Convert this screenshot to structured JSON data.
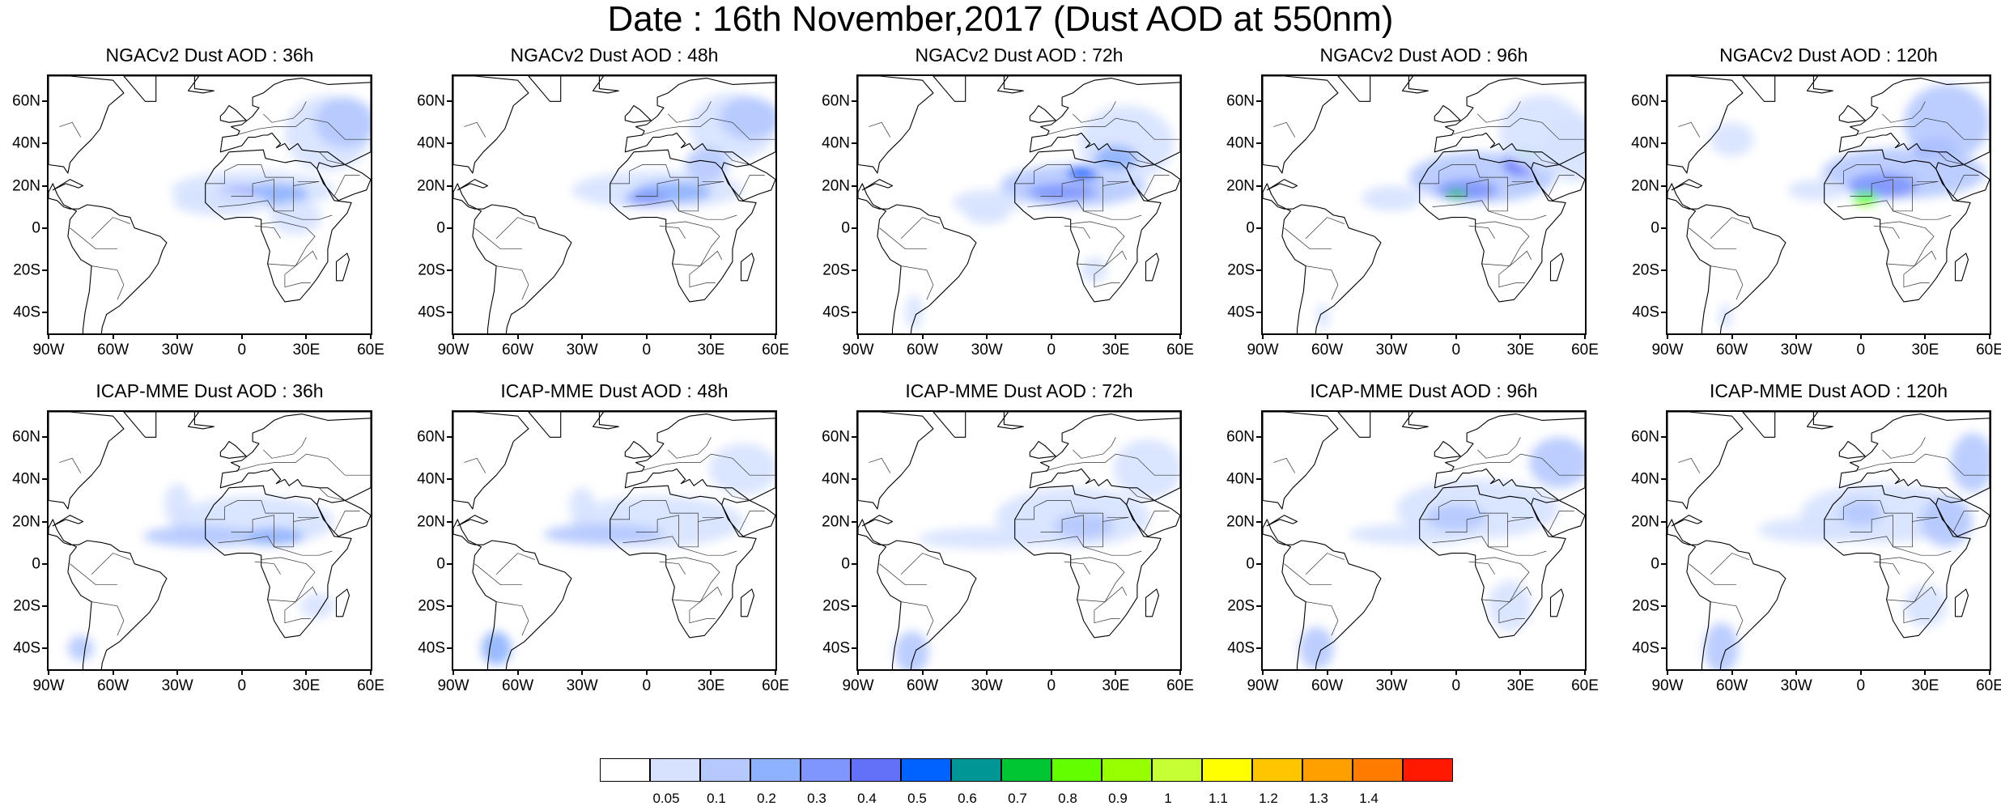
{
  "title": "Date : 16th November,2017 (Dust AOD at 550nm)",
  "panels": [
    {
      "title": "NGACv2 Dust AOD : 36h"
    },
    {
      "title": "NGACv2 Dust AOD : 48h"
    },
    {
      "title": "NGACv2 Dust AOD : 72h"
    },
    {
      "title": "NGACv2 Dust AOD : 96h"
    },
    {
      "title": "NGACv2 Dust AOD : 120h"
    },
    {
      "title": "ICAP-MME Dust AOD : 36h"
    },
    {
      "title": "ICAP-MME Dust AOD : 48h"
    },
    {
      "title": "ICAP-MME Dust AOD : 72h"
    },
    {
      "title": "ICAP-MME Dust AOD : 96h"
    },
    {
      "title": "ICAP-MME Dust AOD : 120h"
    }
  ],
  "lat_labels": [
    "60N",
    "40N",
    "20N",
    "0",
    "20S",
    "40S"
  ],
  "lon_labels": [
    "90W",
    "60W",
    "30W",
    "0",
    "30E",
    "60E"
  ],
  "colorbar": {
    "labels": [
      "0.05",
      "0.1",
      "0.2",
      "0.3",
      "0.4",
      "0.5",
      "0.6",
      "0.7",
      "0.8",
      "0.9",
      "1",
      "1.1",
      "1.2",
      "1.3",
      "1.4"
    ],
    "colors": [
      "#ffffff",
      "#d6e2ff",
      "#b5c9ff",
      "#8eb2ff",
      "#7f96ff",
      "#6370f8",
      "#0063ff",
      "#009696",
      "#00c633",
      "#63ff00",
      "#96ff00",
      "#c6ff33",
      "#ffff00",
      "#ffc600",
      "#ffa000",
      "#ff7c00",
      "#ff1900"
    ]
  }
}
